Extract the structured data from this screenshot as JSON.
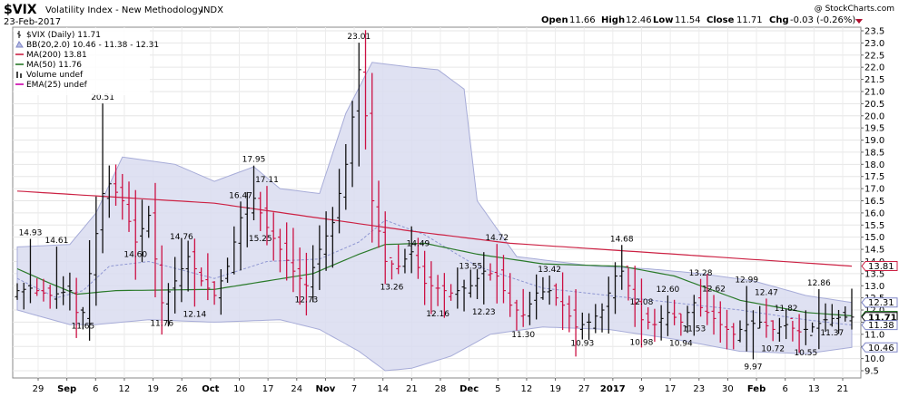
{
  "header": {
    "symbol": "$VIX",
    "name": "Volatility Index - New Methodology",
    "exchange": "INDX",
    "date": "23-Feb-2017",
    "watermark": "@ StockCharts.com",
    "open_label": "Open",
    "open": "11.66",
    "high_label": "High",
    "high": "12.46",
    "low_label": "Low",
    "low": "11.54",
    "close_label": "Close",
    "close": "11.71",
    "chg_label": "Chg",
    "chg": "-0.03 (-0.26%)"
  },
  "legend": [
    {
      "text": "$VIX (Daily) 11.71",
      "color": "#000000",
      "icon": "bar-icon"
    },
    {
      "text": "BB(20,2.0) 10.46 - 11.38 - 12.31",
      "color": "#7f86c7",
      "icon": "band-icon"
    },
    {
      "text": "MA(200) 13.81",
      "color": "#cc2244",
      "icon": "line-icon"
    },
    {
      "text": "MA(50) 11.76",
      "color": "#2a7a2a",
      "icon": "line-icon"
    },
    {
      "text": "Volume undef",
      "color": "#444444",
      "icon": "volume-icon"
    },
    {
      "text": "EMA(25) undef",
      "color": "#cc00aa",
      "icon": "line-icon"
    }
  ],
  "chart_data": {
    "type": "ohlc",
    "yaxis": {
      "min": 9.5,
      "max": 23.5,
      "step": 0.5,
      "labels": [
        "9.5",
        "10.0",
        "10.5",
        "11.0",
        "11.5",
        "12.0",
        "12.5",
        "13.0",
        "13.5",
        "14.0",
        "14.5",
        "15.0",
        "15.5",
        "16.0",
        "16.5",
        "17.0",
        "17.5",
        "18.0",
        "18.5",
        "19.0",
        "19.5",
        "20.0",
        "20.5",
        "21.0",
        "21.5",
        "22.0",
        "22.5",
        "23.0",
        "23.5"
      ]
    },
    "x_ticks": [
      "29",
      "Sep",
      "6",
      "12",
      "19",
      "26",
      "Oct",
      "10",
      "17",
      "24",
      "Nov",
      "7",
      "14",
      "21",
      "28",
      "Dec",
      "5",
      "12",
      "19",
      "27",
      "2017",
      "9",
      "17",
      "23",
      "30",
      "Feb",
      "6",
      "13",
      "21"
    ],
    "end_tags": [
      {
        "value": 13.81,
        "text": "13.81",
        "color": "#cc2244"
      },
      {
        "value": 12.31,
        "text": "12.31",
        "color": "#7f86c7"
      },
      {
        "value": 11.76,
        "text": "11.76",
        "color": "#2a7a2a"
      },
      {
        "value": 11.71,
        "text": "11.71",
        "color": "#000000"
      },
      {
        "value": 11.38,
        "text": "11.38",
        "color": "#7f86c7"
      },
      {
        "value": 10.46,
        "text": "10.46",
        "color": "#7f86c7"
      }
    ],
    "annotations": [
      {
        "text": "14.93",
        "i": 2,
        "v": 14.93
      },
      {
        "text": "14.61",
        "i": 6,
        "v": 14.61
      },
      {
        "text": "11.65",
        "i": 10,
        "v": 11.65
      },
      {
        "text": "20.51",
        "i": 13,
        "v": 20.51
      },
      {
        "text": "14.60",
        "i": 18,
        "v": 14.6
      },
      {
        "text": "14.76",
        "i": 25,
        "v": 14.76
      },
      {
        "text": "11.76",
        "i": 22,
        "v": 11.76
      },
      {
        "text": "12.14",
        "i": 27,
        "v": 12.14
      },
      {
        "text": "16.47",
        "i": 34,
        "v": 16.47
      },
      {
        "text": "17.95",
        "i": 36,
        "v": 17.95
      },
      {
        "text": "17.11",
        "i": 38,
        "v": 17.11
      },
      {
        "text": "15.25",
        "i": 37,
        "v": 15.25
      },
      {
        "text": "12.73",
        "i": 44,
        "v": 12.73
      },
      {
        "text": "23.01",
        "i": 52,
        "v": 23.01
      },
      {
        "text": "13.26",
        "i": 57,
        "v": 13.26
      },
      {
        "text": "14.49",
        "i": 61,
        "v": 14.49
      },
      {
        "text": "12.16",
        "i": 64,
        "v": 12.16
      },
      {
        "text": "13.55",
        "i": 69,
        "v": 13.55
      },
      {
        "text": "12.23",
        "i": 71,
        "v": 12.23
      },
      {
        "text": "14.72",
        "i": 73,
        "v": 14.72
      },
      {
        "text": "11.30",
        "i": 77,
        "v": 11.3
      },
      {
        "text": "13.42",
        "i": 81,
        "v": 13.42
      },
      {
        "text": "10.93",
        "i": 86,
        "v": 10.93
      },
      {
        "text": "14.68",
        "i": 92,
        "v": 14.68
      },
      {
        "text": "12.08",
        "i": 95,
        "v": 12.08
      },
      {
        "text": "10.98",
        "i": 95,
        "v": 10.98
      },
      {
        "text": "12.60",
        "i": 99,
        "v": 12.6
      },
      {
        "text": "10.94",
        "i": 101,
        "v": 10.94
      },
      {
        "text": "13.28",
        "i": 104,
        "v": 13.28
      },
      {
        "text": "11.53",
        "i": 103,
        "v": 11.53
      },
      {
        "text": "12.62",
        "i": 106,
        "v": 12.62
      },
      {
        "text": "12.99",
        "i": 111,
        "v": 12.99
      },
      {
        "text": "12.47",
        "i": 114,
        "v": 12.47
      },
      {
        "text": "10.72",
        "i": 115,
        "v": 10.72
      },
      {
        "text": "9.97",
        "i": 112,
        "v": 9.97
      },
      {
        "text": "11.82",
        "i": 117,
        "v": 11.82
      },
      {
        "text": "10.55",
        "i": 120,
        "v": 10.55
      },
      {
        "text": "12.86",
        "i": 122,
        "v": 12.86
      },
      {
        "text": "11.37",
        "i": 124,
        "v": 11.37
      }
    ],
    "anchors": [
      [
        0,
        12.8
      ],
      [
        2,
        12.9
      ],
      [
        5,
        12.6
      ],
      [
        8,
        12.8
      ],
      [
        9,
        11.9
      ],
      [
        10,
        11.9
      ],
      [
        11,
        13.5
      ],
      [
        13,
        16.8
      ],
      [
        14,
        17.2
      ],
      [
        16,
        16.5
      ],
      [
        18,
        14.8
      ],
      [
        20,
        15.9
      ],
      [
        22,
        12.3
      ],
      [
        24,
        13.2
      ],
      [
        26,
        14.2
      ],
      [
        28,
        13.2
      ],
      [
        30,
        12.6
      ],
      [
        32,
        13.8
      ],
      [
        34,
        15.8
      ],
      [
        36,
        16.6
      ],
      [
        38,
        15.4
      ],
      [
        40,
        14.5
      ],
      [
        42,
        13.6
      ],
      [
        44,
        13.0
      ],
      [
        46,
        14.5
      ],
      [
        48,
        15.6
      ],
      [
        50,
        18.0
      ],
      [
        52,
        21.9
      ],
      [
        53,
        20.0
      ],
      [
        54,
        16.5
      ],
      [
        56,
        14.0
      ],
      [
        58,
        13.8
      ],
      [
        60,
        14.4
      ],
      [
        62,
        13.1
      ],
      [
        64,
        12.9
      ],
      [
        66,
        12.7
      ],
      [
        68,
        12.9
      ],
      [
        69,
        13.0
      ],
      [
        70,
        13.3
      ],
      [
        71,
        13.6
      ],
      [
        73,
        13.4
      ],
      [
        75,
        12.2
      ],
      [
        77,
        11.8
      ],
      [
        79,
        12.7
      ],
      [
        81,
        12.8
      ],
      [
        83,
        12.2
      ],
      [
        85,
        11.3
      ],
      [
        87,
        11.5
      ],
      [
        89,
        12.0
      ],
      [
        91,
        13.4
      ],
      [
        92,
        13.6
      ],
      [
        93,
        13.0
      ],
      [
        95,
        11.6
      ],
      [
        97,
        11.4
      ],
      [
        99,
        11.9
      ],
      [
        101,
        11.5
      ],
      [
        103,
        12.3
      ],
      [
        105,
        11.9
      ],
      [
        107,
        11.4
      ],
      [
        109,
        11.0
      ],
      [
        111,
        11.4
      ],
      [
        113,
        11.5
      ],
      [
        115,
        11.2
      ],
      [
        117,
        11.4
      ],
      [
        119,
        11.1
      ],
      [
        121,
        11.3
      ],
      [
        123,
        11.6
      ],
      [
        125,
        11.7
      ],
      [
        127,
        11.71
      ]
    ],
    "ma200": [
      [
        0,
        16.9
      ],
      [
        30,
        16.4
      ],
      [
        60,
        15.25
      ],
      [
        75,
        14.75
      ],
      [
        100,
        14.3
      ],
      [
        127,
        13.81
      ]
    ],
    "ma50": [
      [
        0,
        13.7
      ],
      [
        5,
        13.1
      ],
      [
        9,
        12.65
      ],
      [
        15,
        12.8
      ],
      [
        30,
        12.85
      ],
      [
        45,
        13.5
      ],
      [
        52,
        14.3
      ],
      [
        56,
        14.7
      ],
      [
        62,
        14.75
      ],
      [
        70,
        14.3
      ],
      [
        80,
        13.9
      ],
      [
        92,
        13.8
      ],
      [
        100,
        13.4
      ],
      [
        110,
        12.4
      ],
      [
        120,
        11.9
      ],
      [
        127,
        11.76
      ]
    ],
    "bb_mid": [
      [
        0,
        13.3
      ],
      [
        6,
        12.5
      ],
      [
        10,
        12.8
      ],
      [
        14,
        13.8
      ],
      [
        20,
        14.0
      ],
      [
        30,
        13.3
      ],
      [
        38,
        14.0
      ],
      [
        46,
        14.1
      ],
      [
        52,
        14.8
      ],
      [
        56,
        15.7
      ],
      [
        62,
        15.1
      ],
      [
        70,
        13.8
      ],
      [
        80,
        12.9
      ],
      [
        90,
        12.6
      ],
      [
        100,
        12.3
      ],
      [
        110,
        12.0
      ],
      [
        120,
        11.6
      ],
      [
        127,
        11.38
      ]
    ],
    "bb_up": [
      [
        0,
        14.6
      ],
      [
        8,
        14.7
      ],
      [
        12,
        16.0
      ],
      [
        16,
        18.3
      ],
      [
        24,
        18.0
      ],
      [
        30,
        17.3
      ],
      [
        36,
        17.9
      ],
      [
        40,
        17.0
      ],
      [
        46,
        16.8
      ],
      [
        50,
        20.1
      ],
      [
        54,
        22.2
      ],
      [
        60,
        22.0
      ],
      [
        64,
        21.9
      ],
      [
        68,
        21.1
      ],
      [
        70,
        16.5
      ],
      [
        76,
        14.2
      ],
      [
        88,
        13.8
      ],
      [
        96,
        13.7
      ],
      [
        104,
        13.5
      ],
      [
        112,
        13.2
      ],
      [
        120,
        12.6
      ],
      [
        127,
        12.31
      ]
    ],
    "bb_lo": [
      [
        0,
        12.0
      ],
      [
        8,
        11.4
      ],
      [
        12,
        11.4
      ],
      [
        20,
        11.6
      ],
      [
        30,
        11.5
      ],
      [
        40,
        11.6
      ],
      [
        46,
        11.2
      ],
      [
        52,
        10.3
      ],
      [
        56,
        9.5
      ],
      [
        60,
        9.6
      ],
      [
        66,
        10.1
      ],
      [
        72,
        11.0
      ],
      [
        80,
        11.3
      ],
      [
        90,
        11.2
      ],
      [
        100,
        10.8
      ],
      [
        110,
        10.3
      ],
      [
        120,
        10.2
      ],
      [
        127,
        10.46
      ]
    ]
  }
}
